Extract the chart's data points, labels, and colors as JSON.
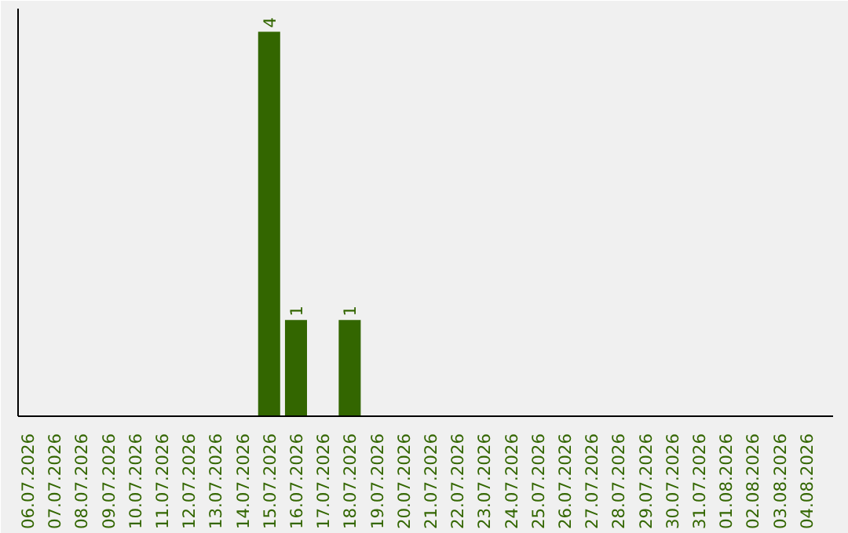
{
  "chart_data": {
    "type": "bar",
    "categories": [
      "06.07.2026",
      "07.07.2026",
      "08.07.2026",
      "09.07.2026",
      "10.07.2026",
      "11.07.2026",
      "12.07.2026",
      "13.07.2026",
      "14.07.2026",
      "15.07.2026",
      "16.07.2026",
      "17.07.2026",
      "18.07.2026",
      "19.07.2026",
      "20.07.2026",
      "21.07.2026",
      "22.07.2026",
      "23.07.2026",
      "24.07.2026",
      "25.07.2026",
      "26.07.2026",
      "27.07.2026",
      "28.07.2026",
      "29.07.2026",
      "30.07.2026",
      "31.07.2026",
      "01.08.2026",
      "02.08.2026",
      "03.08.2026",
      "04.08.2026"
    ],
    "values": [
      0,
      0,
      0,
      0,
      0,
      0,
      0,
      0,
      0,
      4,
      1,
      0,
      1,
      0,
      0,
      0,
      0,
      0,
      0,
      0,
      0,
      0,
      0,
      0,
      0,
      0,
      0,
      0,
      0,
      0
    ],
    "value_labels": [
      null,
      null,
      null,
      null,
      null,
      null,
      null,
      null,
      null,
      "4",
      "1",
      null,
      "1",
      null,
      null,
      null,
      null,
      null,
      null,
      null,
      null,
      null,
      null,
      null,
      null,
      null,
      null,
      null,
      null,
      null
    ],
    "color": "#336600",
    "grid": false,
    "tick_labels": "x"
  }
}
